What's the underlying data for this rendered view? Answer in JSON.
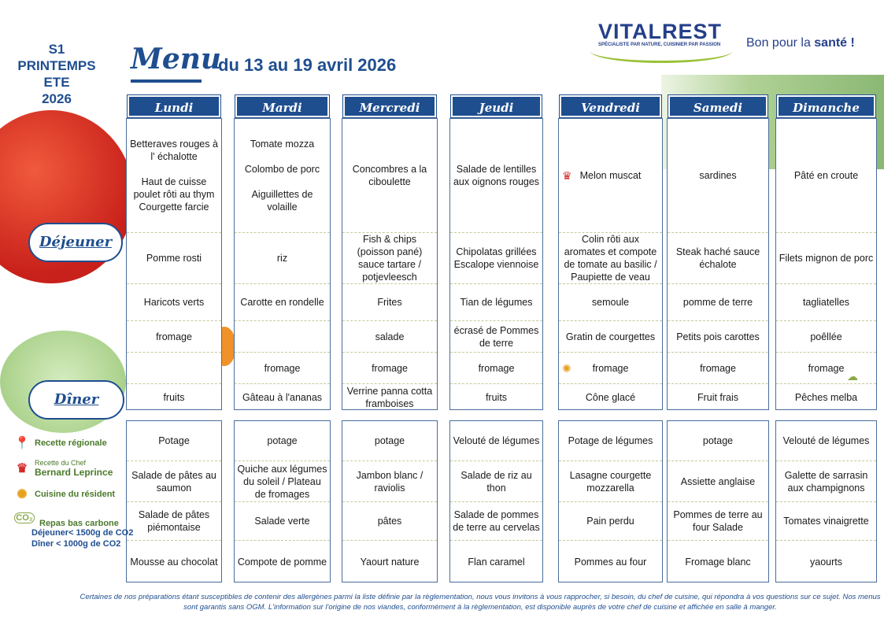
{
  "season": {
    "line1": "S1",
    "line2": "PRINTEMPS",
    "line3": "ETE",
    "line4": "2026"
  },
  "title": "Menu",
  "date_range": "du 13 au 19 avril 2026",
  "brand": {
    "name": "VITALREST",
    "tagline": "SPÉCIALISTE PAR NATURE, CUISINIER PAR PASSION",
    "slogan_prefix": "Bon pour la ",
    "slogan_bold": "santé !"
  },
  "days": [
    "Lundi",
    "Mardi",
    "Mercredi",
    "Jeudi",
    "Vendredi",
    "Samedi",
    "Dimanche"
  ],
  "meals": {
    "lunch": "Déjeuner",
    "dinner": "Dîner"
  },
  "lunch": [
    [
      "Betteraves rouges à l' échalotte\n\nHaut de cuisse poulet rôti au thym Courgette farcie",
      "Pomme rosti",
      "Haricots verts",
      "fromage",
      "",
      "fruits"
    ],
    [
      "Tomate mozza\n\nColombo de porc\n\nAiguillettes de volaille",
      "riz",
      "Carotte en rondelle",
      "",
      "fromage",
      "Gâteau à l'ananas"
    ],
    [
      "Concombres a la ciboulette",
      "Fish & chips (poisson pané) sauce tartare / potjevleesch",
      "Frites",
      "salade",
      "fromage",
      "Verrine panna cotta framboises"
    ],
    [
      "Salade de lentilles aux oignons rouges",
      "Chipolatas grillées Escalope viennoise",
      "Tian de légumes",
      "écrasé de Pommes de terre",
      "fromage",
      "fruits"
    ],
    [
      "Melon muscat",
      "Colin rôti aux aromates et compote de tomate au basilic / Paupiette de veau",
      "semoule",
      "Gratin de courgettes",
      "fromage",
      "Cône glacé"
    ],
    [
      "sardines",
      "Steak haché sauce échalote",
      "pomme de terre",
      "Petits pois carottes",
      "fromage",
      "Fruit frais"
    ],
    [
      "Pâté en croute",
      "Filets mignon de porc",
      "tagliatelles",
      "poêllée",
      "fromage",
      "Pêches melba"
    ]
  ],
  "dinner": [
    [
      "Potage",
      "Salade de pâtes au saumon",
      "Salade de pâtes piémontaise",
      "Mousse au chocolat"
    ],
    [
      "potage",
      "Quiche aux légumes du soleil / Plateau de fromages",
      "Salade verte",
      "Compote de pomme"
    ],
    [
      "potage",
      "Jambon blanc / raviolis",
      "pâtes",
      "Yaourt nature"
    ],
    [
      "Velouté de légumes",
      "Salade de riz au thon",
      "Salade de pommes de terre au cervelas",
      "Flan caramel"
    ],
    [
      "Potage de légumes",
      "Lasagne courgette mozzarella",
      "Pain perdu",
      "Pommes au four"
    ],
    [
      "potage",
      "Assiette anglaise",
      "Pommes de terre au four Salade",
      "Fromage blanc"
    ],
    [
      "Velouté de légumes",
      "Galette de sarrasin aux champignons",
      "Tomates vinaigrette",
      "yaourts"
    ]
  ],
  "legend": {
    "regional": "Recette régionale",
    "chef_line1": "Recette du Chef",
    "chef_line2": "Bernard Leprince",
    "resident": "Cuisine du résident",
    "low_carbon": "Repas bas carbone",
    "lunch_limit": "Déjeuner< 1500g de CO2",
    "dinner_limit": "Dîner < 1000g de CO2"
  },
  "footer": "Certaines de nos préparations étant susceptibles de contenir des allergènes parmi la liste définie par la règlementation, nous vous invitons à vous rapprocher, si besoin, du chef de cuisine, qui répondra à vos questions sur ce sujet. Nos menus sont garantis sans OGM. L'information sur l'origine de nos viandes, conformément à la règlementation, est disponible auprès de votre chef de cuisine et affichée en salle à manger.",
  "colors": {
    "brand_blue": "#1f4e8f",
    "legend_green": "#4a7a2a"
  }
}
